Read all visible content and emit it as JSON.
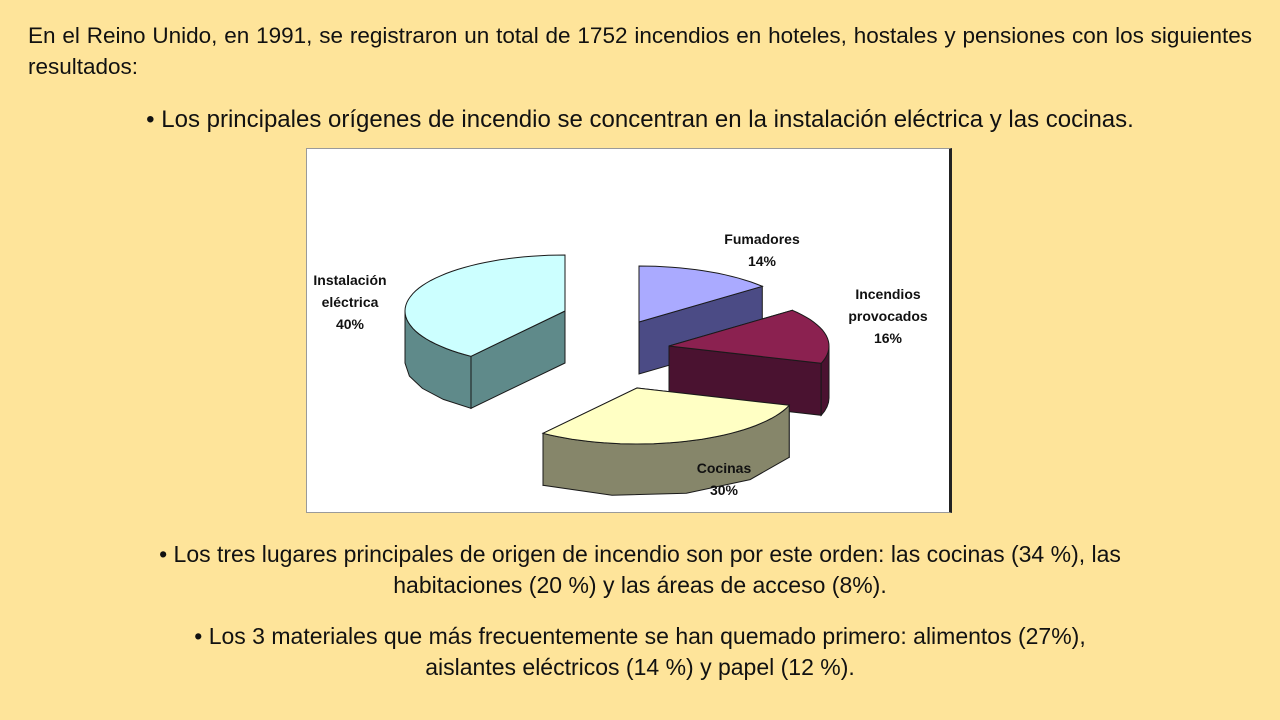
{
  "intro": "En el Reino Unido, en 1991, se registraron un total de 1752 incendios en hoteles, hostales y pensiones con los siguientes resultados:",
  "bullets": {
    "b1": "• Los principales orígenes de incendio se concentran en la instalación eléctrica y las cocinas.",
    "b2_line1": "• Los tres lugares principales de origen de incendio son por este orden: las cocinas (34 %), las",
    "b2_line2": "habitaciones (20 %) y las áreas de acceso (8%).",
    "b3_line1": "• Los 3 materiales que más frecuentemente se han quemado primero: alimentos (27%),",
    "b3_line2": "aislantes eléctricos (14 %) y papel (12 %)."
  },
  "chart_data": {
    "type": "pie",
    "style": "3d-exploded",
    "legend": "none",
    "slices": [
      {
        "label_lines": [
          "Fumadores"
        ],
        "pct_label": "14%",
        "value": 14,
        "top_color": "#AAAAFF",
        "side_color": "#4B4B85"
      },
      {
        "label_lines": [
          "Incendios",
          "provocados"
        ],
        "pct_label": "16%",
        "value": 16,
        "top_color": "#8B2150",
        "side_color": "#4A1230"
      },
      {
        "label_lines": [
          "Cocinas"
        ],
        "pct_label": "30%",
        "value": 30,
        "top_color": "#FFFFC4",
        "side_color": "#86866A"
      },
      {
        "label_lines": [
          "Instalación",
          "eléctrica"
        ],
        "pct_label": "40%",
        "value": 40,
        "top_color": "#CCFFFF",
        "side_color": "#5F8A8A"
      }
    ]
  }
}
